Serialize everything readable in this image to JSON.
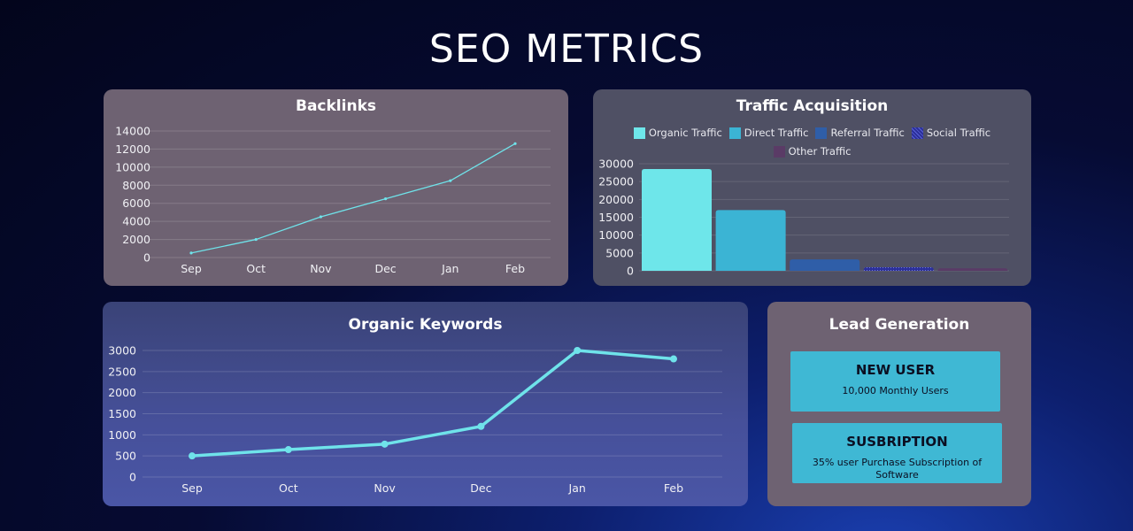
{
  "page": {
    "title": "SEO METRICS"
  },
  "colors": {
    "organic": "#6ee6ea",
    "direct": "#3bb4d4",
    "referral": "#2f5ea8",
    "social": "#2b2f9a",
    "other": "#5a3b66",
    "line": "#6fe3ea"
  },
  "chart_data": [
    {
      "type": "line",
      "title": "Backlinks",
      "categories": [
        "Sep",
        "Oct",
        "Nov",
        "Dec",
        "Jan",
        "Feb"
      ],
      "values": [
        500,
        2000,
        4500,
        6500,
        8500,
        12600
      ],
      "ylim": [
        0,
        14000
      ],
      "yticks": [
        0,
        2000,
        4000,
        6000,
        8000,
        10000,
        12000,
        14000
      ]
    },
    {
      "type": "bar",
      "title": "Traffic Acquisition",
      "categories": [
        "Organic Traffic",
        "Direct Traffic",
        "Referral Traffic",
        "Social Traffic",
        "Other Traffic"
      ],
      "values": [
        28500,
        17000,
        3200,
        1000,
        700
      ],
      "ylim": [
        0,
        30000
      ],
      "yticks": [
        0,
        5000,
        10000,
        15000,
        20000,
        25000,
        30000
      ],
      "legend": [
        "Organic Traffic",
        "Direct Traffic",
        "Referral Traffic",
        "Social Traffic",
        "Other Traffic"
      ]
    },
    {
      "type": "line",
      "title": "Organic Keywords",
      "categories": [
        "Sep",
        "Oct",
        "Nov",
        "Dec",
        "Jan",
        "Feb"
      ],
      "values": [
        500,
        650,
        780,
        1200,
        3000,
        2800
      ],
      "ylim": [
        0,
        3000
      ],
      "yticks": [
        0,
        500,
        1000,
        1500,
        2000,
        2500,
        3000
      ]
    }
  ],
  "lead": {
    "title": "Lead Generation",
    "cards": [
      {
        "title": "NEW USER",
        "text": "10,000 Monthly Users"
      },
      {
        "title": "SUSBRIPTION",
        "text": "35% user Purchase Subscription of Software"
      }
    ]
  }
}
